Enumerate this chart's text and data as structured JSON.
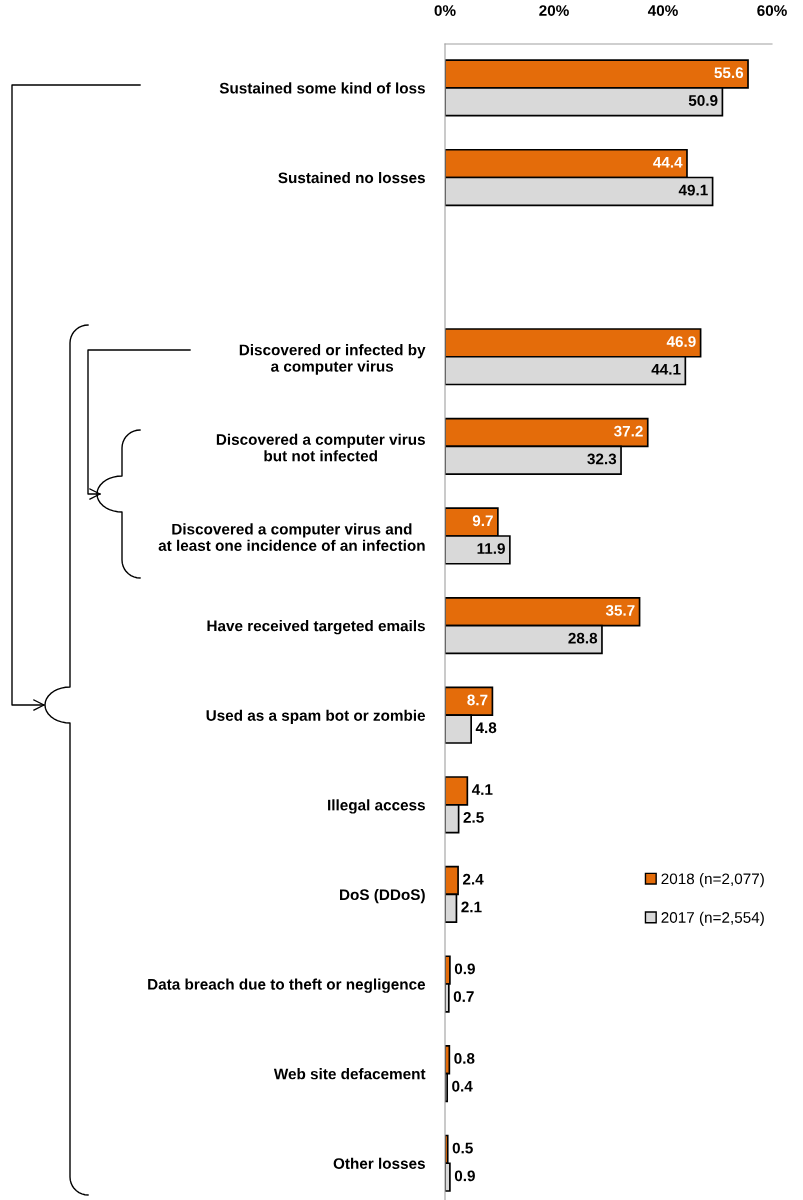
{
  "chart_data": {
    "type": "bar",
    "orientation": "horizontal",
    "categories": [
      "Sustained some kind of loss",
      "Sustained no losses",
      null,
      "Discovered or infected by\na computer virus",
      "Discovered a computer virus\nbut not infected",
      "Discovered a computer virus and\nat least one incidence of an infection",
      "Have received targeted emails",
      "Used as a spam bot or zombie",
      "Illegal access",
      "DoS (DDoS)",
      "Data breach due to theft or negligence",
      "Web site defacement",
      "Other losses"
    ],
    "series": [
      {
        "name": "2018 (n=2,077)",
        "color": "#e46c0a",
        "values": [
          55.6,
          44.4,
          null,
          46.9,
          37.2,
          9.7,
          35.7,
          8.7,
          4.1,
          2.4,
          0.9,
          0.8,
          0.5
        ]
      },
      {
        "name": "2017 (n=2,554)",
        "color": "#d9d9d9",
        "values": [
          50.9,
          49.1,
          null,
          44.1,
          32.3,
          11.9,
          28.8,
          4.8,
          2.5,
          2.1,
          0.7,
          0.4,
          0.9
        ]
      }
    ],
    "xlim": [
      0,
      60
    ],
    "xticks": [
      {
        "value": 0,
        "label": "0%"
      },
      {
        "value": 20,
        "label": "20%"
      },
      {
        "value": 40,
        "label": "40%"
      },
      {
        "value": 60,
        "label": "60%"
      }
    ],
    "data_labels": true,
    "grid": false,
    "legend": "right"
  }
}
